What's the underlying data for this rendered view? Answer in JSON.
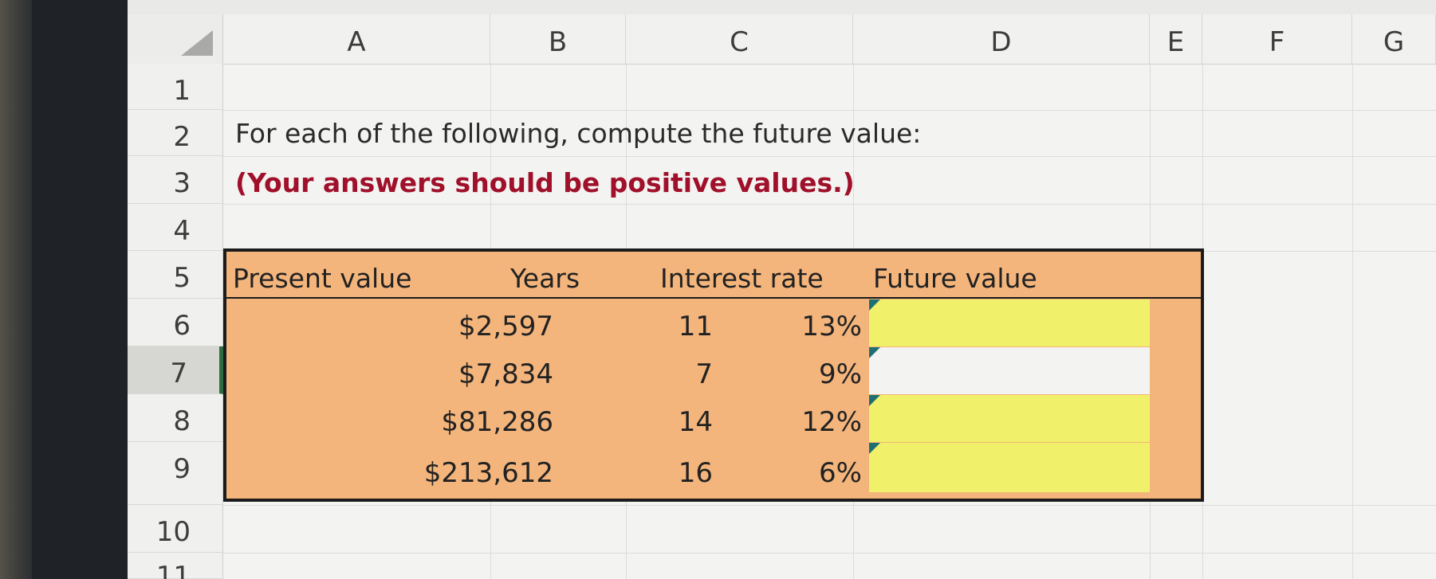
{
  "columns": [
    "A",
    "B",
    "C",
    "D",
    "E",
    "F",
    "G"
  ],
  "rows": [
    "1",
    "2",
    "3",
    "4",
    "5",
    "6",
    "7",
    "8",
    "9",
    "10",
    "11"
  ],
  "instruction": "For each of the following, compute the future value:",
  "note": "(Your answers should be positive values.)",
  "table": {
    "headers": {
      "present_value": "Present value",
      "years": "Years",
      "interest_rate": "Interest rate",
      "future_value": "Future value"
    },
    "rows": [
      {
        "present_value": "$2,597",
        "years": "11",
        "interest_rate": "13%",
        "future_value": ""
      },
      {
        "present_value": "$7,834",
        "years": "7",
        "interest_rate": "9%",
        "future_value": ""
      },
      {
        "present_value": "$81,286",
        "years": "14",
        "interest_rate": "12%",
        "future_value": ""
      },
      {
        "present_value": "$213,612",
        "years": "16",
        "interest_rate": "6%",
        "future_value": ""
      }
    ]
  },
  "colors": {
    "table_fill": "#f4b57c",
    "input_fill": "#f1f06a",
    "input_fill_selected": "#f3f3f1",
    "note_text": "#a0102a",
    "selected_row_marker": "#2e6b43"
  }
}
